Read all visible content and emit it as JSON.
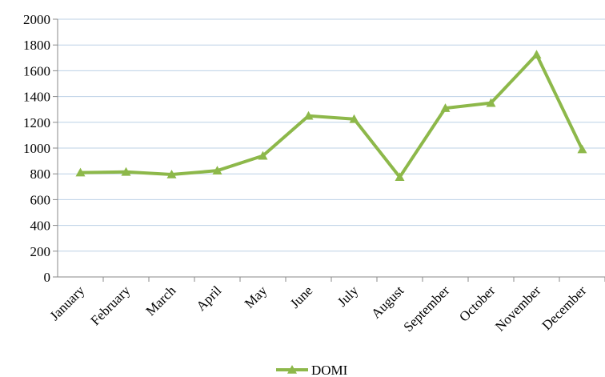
{
  "chart_data": {
    "type": "line",
    "categories": [
      "January",
      "February",
      "March",
      "April",
      "May",
      "June",
      "July",
      "August",
      "September",
      "October",
      "November",
      "December"
    ],
    "series": [
      {
        "name": "DOMI",
        "color": "#8db84a",
        "values": [
          810,
          815,
          795,
          825,
          940,
          1250,
          1225,
          775,
          1310,
          1350,
          1725,
          990
        ]
      }
    ],
    "ylim": [
      0,
      2000
    ],
    "yticks": [
      0,
      200,
      400,
      600,
      800,
      1000,
      1200,
      1400,
      1600,
      1800,
      2000
    ],
    "grid": true,
    "legend": "bottom"
  }
}
